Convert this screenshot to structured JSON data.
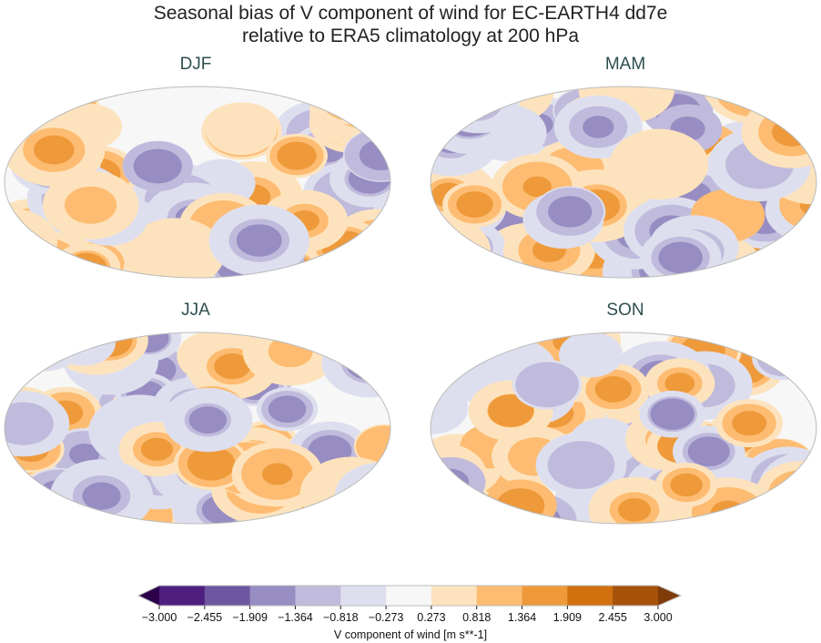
{
  "title_line1": "Seasonal bias of V component of wind for EC-EARTH4 dd7e",
  "title_line2": "relative to ERA5 climatology at 200 hPa",
  "panels": [
    {
      "label": "DJF"
    },
    {
      "label": "MAM"
    },
    {
      "label": "JJA"
    },
    {
      "label": "SON"
    }
  ],
  "projection": "Robinson (global, coastlines)",
  "colorbar": {
    "label": "V component of wind [m s**-1]",
    "ticks": [
      "−3.000",
      "−2.455",
      "−1.909",
      "−1.364",
      "−0.818",
      "−0.273",
      "0.273",
      "0.818",
      "1.364",
      "1.909",
      "2.455",
      "3.000"
    ],
    "extend": "both",
    "colors": [
      "#2d004b",
      "#4f1f80",
      "#6e56a0",
      "#978dc2",
      "#c0bbdc",
      "#dedfee",
      "#f7f7f7",
      "#fde3bd",
      "#fdbc72",
      "#ee9a3a",
      "#d2700f",
      "#a6520a",
      "#7f3b08"
    ]
  }
}
